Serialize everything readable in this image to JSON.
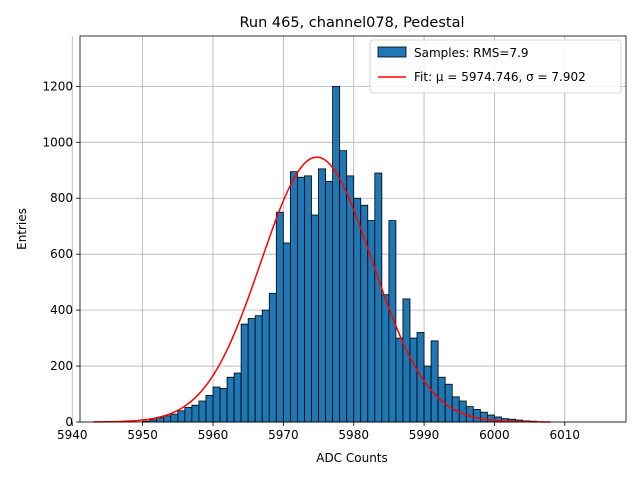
{
  "chart_data": {
    "type": "bar",
    "title": "Run 465, channel078, Pedestal",
    "xlabel": "ADC Counts",
    "ylabel": "Entries",
    "xlim": [
      5941.1,
      6018.7
    ],
    "ylim": [
      0,
      1380
    ],
    "xticks": [
      5940,
      5950,
      5960,
      5970,
      5980,
      5990,
      6000,
      6010
    ],
    "yticks": [
      0,
      200,
      400,
      600,
      800,
      1000,
      1200
    ],
    "grid": true,
    "legend_position": "top-right",
    "colors": {
      "bars": "#1f77b4",
      "fit": "#ff0000",
      "edge": "#000000",
      "grid": "#b0b0b0"
    },
    "series": [
      {
        "name": "Samples: RMS=7.9",
        "kind": "histogram",
        "bin_start": 5950,
        "bin_width": 1,
        "values": [
          3,
          8,
          15,
          22,
          28,
          40,
          52,
          60,
          75,
          95,
          125,
          120,
          160,
          175,
          350,
          370,
          380,
          400,
          460,
          750,
          640,
          895,
          875,
          880,
          740,
          905,
          860,
          1200,
          970,
          880,
          800,
          775,
          720,
          890,
          455,
          720,
          300,
          440,
          300,
          320,
          200,
          290,
          160,
          135,
          90,
          75,
          55,
          45,
          35,
          25,
          18,
          12,
          10,
          7,
          4,
          3
        ]
      },
      {
        "name": "Fit: μ = 5974.746, σ = 7.902",
        "kind": "gaussian",
        "mu": 5974.746,
        "sigma": 7.902,
        "amplitude": 947,
        "x_range": [
          5943,
          6008
        ]
      }
    ]
  }
}
